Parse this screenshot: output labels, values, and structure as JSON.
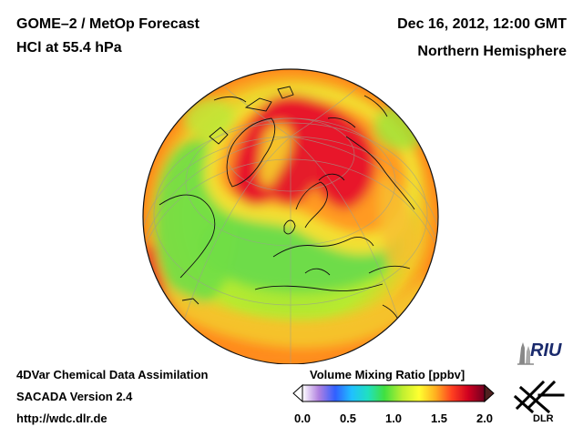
{
  "header": {
    "title_line1": "GOME–2 / MetOp Forecast",
    "title_line2": "HCl at 55.4 hPa",
    "date": "Dec 16, 2012, 12:00 GMT",
    "region": "Northern Hemisphere"
  },
  "footer": {
    "line1": "4DVar Chemical Data Assimilation",
    "line2": "SACADA Version 2.4",
    "line3": "http://wdc.dlr.de"
  },
  "colorbar": {
    "title": "Volume Mixing Ratio [ppbv]",
    "min": 0.0,
    "max": 2.0,
    "ticks": [
      "0.0",
      "0.5",
      "1.0",
      "1.5",
      "2.0"
    ],
    "colors": [
      "#ffffff",
      "#b080e0",
      "#3060ff",
      "#20c0ff",
      "#20e0c0",
      "#40e040",
      "#c0ef30",
      "#ffff30",
      "#ffb020",
      "#ff4020",
      "#d00020",
      "#700020"
    ]
  },
  "map": {
    "projection": "orthographic",
    "colors": {
      "low_green": "#7fe040",
      "mid_yellow": "#e8ef30",
      "high_orange": "#ff9a1a",
      "peak_red": "#e8102a"
    }
  },
  "logos": {
    "riu": "RIU",
    "dlr": "DLR"
  }
}
